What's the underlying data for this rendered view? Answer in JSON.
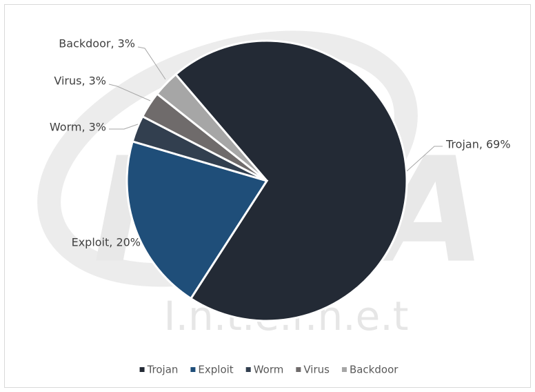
{
  "chart_data": {
    "type": "pie",
    "categories": [
      "Trojan",
      "Exploit",
      "Worm",
      "Virus",
      "Backdoor"
    ],
    "values": [
      69,
      20,
      3,
      3,
      3
    ],
    "value_labels": [
      "Trojan, 69%",
      "Exploit, 20%",
      "Worm, 3%",
      "Virus, 3%",
      "Backdoor, 3%"
    ],
    "colors": [
      "#232a35",
      "#1f4e79",
      "#323f4f",
      "#6f6b6b",
      "#a6a6a6"
    ],
    "legend": "bottom",
    "watermark": {
      "logo": "INCA",
      "text": "I.n.t.e.r.n.e.t"
    }
  }
}
